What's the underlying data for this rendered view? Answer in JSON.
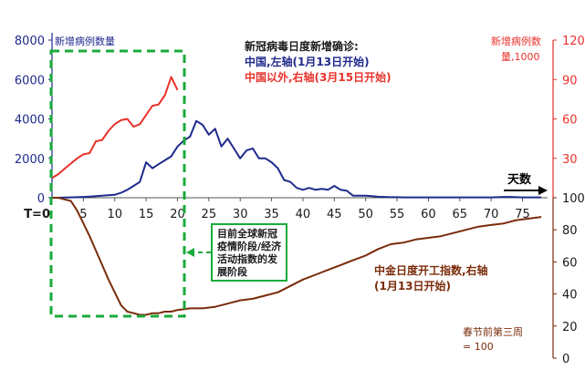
{
  "chart_data": {
    "type": "line",
    "title_lines": [
      "新冠病毒日度新增确诊:",
      "中国,左轴(1月13日开始)",
      "中国以外,右轴(3月15日开始)"
    ],
    "left_axis_name": "新增病例数量",
    "right_axis_name_top": "新增病例数",
    "right_axis_name_bottom": "量,1000",
    "x": {
      "start_label": "T=0",
      "ticks": [
        5,
        10,
        15,
        20,
        25,
        30,
        35,
        40,
        45,
        50,
        55,
        60,
        65,
        70,
        75
      ],
      "range": [
        0,
        79
      ],
      "arrow_label": "天数"
    },
    "y_left_top": {
      "ticks": [
        0,
        2000,
        4000,
        6000,
        8000
      ],
      "range": [
        0,
        8000
      ]
    },
    "y_right_top": {
      "ticks": [
        0,
        30,
        60,
        90,
        120
      ],
      "range": [
        0,
        120
      ]
    },
    "y_right_bottom": {
      "ticks": [
        0,
        20,
        40,
        60,
        80,
        100
      ],
      "range": [
        0,
        100
      ]
    },
    "series": [
      {
        "name": "中国,左轴(1月13日开始)",
        "color": "#1f2a8c",
        "axis": "left_top",
        "x": [
          0,
          1,
          2,
          3,
          4,
          5,
          6,
          7,
          8,
          9,
          10,
          11,
          12,
          13,
          14,
          15,
          16,
          17,
          18,
          19,
          20,
          21,
          22,
          23,
          24,
          25,
          26,
          27,
          28,
          29,
          30,
          31,
          32,
          33,
          34,
          35,
          36,
          37,
          38,
          39,
          40,
          41,
          42,
          43,
          44,
          45,
          46,
          47,
          48,
          49,
          50,
          51,
          52,
          53,
          54,
          55,
          56,
          57,
          58,
          59,
          60,
          61,
          62,
          63,
          64,
          65,
          66,
          67,
          68,
          69,
          70,
          71,
          72,
          73,
          74,
          75,
          76,
          77,
          78
        ],
        "y": [
          0,
          0,
          10,
          20,
          30,
          40,
          60,
          80,
          100,
          130,
          150,
          250,
          400,
          600,
          800,
          1800,
          1500,
          1700,
          1900,
          2100,
          2600,
          2900,
          3100,
          3900,
          3700,
          3200,
          3500,
          2600,
          3000,
          2500,
          2000,
          2400,
          2500,
          2000,
          2000,
          1800,
          1500,
          900,
          800,
          500,
          400,
          500,
          400,
          450,
          400,
          600,
          400,
          350,
          100,
          100,
          100,
          80,
          50,
          40,
          30,
          30,
          20,
          20,
          20,
          20,
          20,
          20,
          20,
          20,
          20,
          20,
          20,
          20,
          20,
          20,
          20,
          30,
          40,
          40,
          30,
          20,
          20,
          20,
          20
        ]
      },
      {
        "name": "中国以外,右轴(3月15日开始)",
        "color": "#e8322b",
        "axis": "right_top",
        "x": [
          0,
          1,
          2,
          3,
          4,
          5,
          6,
          7,
          8,
          9,
          10,
          11,
          12,
          13,
          14,
          15,
          16,
          17,
          18,
          19,
          20
        ],
        "y": [
          15,
          18,
          22,
          26,
          30,
          33,
          34,
          43,
          44,
          51,
          56,
          59,
          60,
          54,
          56,
          63,
          70,
          71,
          78,
          92,
          82
        ]
      },
      {
        "name": "中金日度开工指数,右轴(1月13日开始)",
        "color": "#7a2b0a",
        "axis": "right_bottom",
        "x": [
          0,
          1,
          2,
          3,
          4,
          5,
          6,
          7,
          8,
          9,
          10,
          11,
          12,
          13,
          14,
          15,
          16,
          17,
          18,
          19,
          20,
          22,
          24,
          26,
          28,
          30,
          32,
          34,
          36,
          38,
          40,
          42,
          44,
          46,
          48,
          50,
          52,
          54,
          56,
          58,
          60,
          62,
          64,
          66,
          68,
          70,
          72,
          74,
          76,
          78
        ],
        "y": [
          100,
          100,
          99,
          98,
          92,
          84,
          76,
          67,
          58,
          49,
          41,
          33,
          29,
          28,
          27,
          27,
          28,
          28,
          29,
          29,
          30,
          31,
          31,
          32,
          34,
          36,
          37,
          39,
          41,
          45,
          49,
          52,
          55,
          58,
          61,
          64,
          68,
          71,
          72,
          74,
          75,
          76,
          78,
          80,
          82,
          83,
          84,
          86,
          87,
          88
        ]
      }
    ],
    "annotations": {
      "green_box_text": "目前全球新冠疫情阶段/经济活动指数的发展阶段",
      "brown_label_line1": "中金日度开工指数,右轴",
      "brown_label_line2": "(1月13日开始)",
      "baseline_line1": "春节前第三周",
      "baseline_line2": "= 100"
    }
  }
}
